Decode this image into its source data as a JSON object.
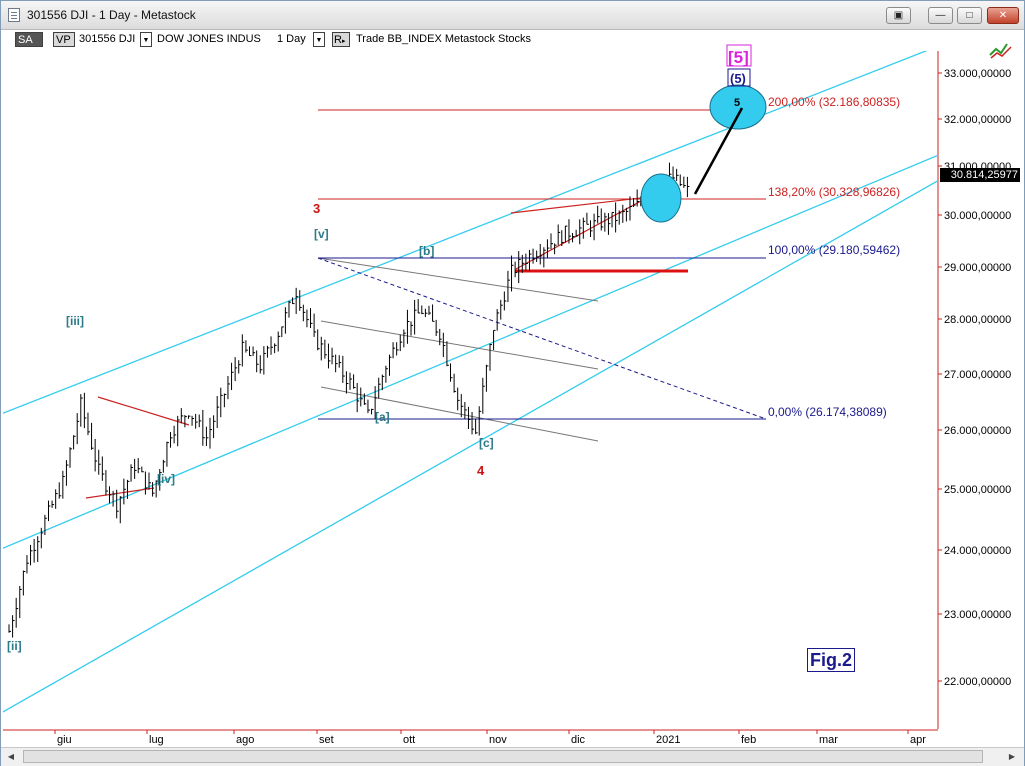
{
  "window": {
    "title": "301556 DJI - 1 Day - Metastock"
  },
  "window_controls": {
    "restore_alt": "▣",
    "minimize": "—",
    "maximize": "□",
    "close": "✕"
  },
  "toolbar": {
    "sa_label": "SA",
    "vp_label": "VP",
    "symbol": "301556 DJI",
    "dropdown_glyph": "▼",
    "security_name": "DOW JONES INDUS",
    "period": "1 Day",
    "r_label": "R",
    "template": "Trade BB_INDEX Metastock Stocks"
  },
  "price_axis": {
    "labels": [
      "33.000,00000",
      "32.000,00000",
      "31.000,00000",
      "30.000,00000",
      "29.000,00000",
      "28.000,00000",
      "27.000,00000",
      "26.000,00000",
      "25.000,00000",
      "24.000,00000",
      "23.000,00000",
      "22.000,00000"
    ],
    "last_price": "30.814,25977",
    "color": "#cc2222"
  },
  "time_axis": {
    "labels": [
      "giu",
      "lug",
      "ago",
      "set",
      "ott",
      "nov",
      "dic",
      "2021",
      "feb",
      "mar",
      "apr"
    ]
  },
  "fibonacci": {
    "levels": [
      {
        "label": "200,00% (32.186,80835)",
        "color": "#cc2222"
      },
      {
        "label": "138,20% (30.328,96826)",
        "color": "#cc2222"
      },
      {
        "label": "100,00% (29.180,59462)",
        "color": "#1a1a8c"
      },
      {
        "label": "0,00% (26.174,38089)",
        "color": "#1a1a8c"
      }
    ]
  },
  "wave_labels": {
    "ii": "[ii]",
    "iii": "[iii]",
    "iv": "[iv]",
    "v": "[v]",
    "a": "[a]",
    "b": "[b]",
    "c": "[c]",
    "three": "3",
    "four": "4",
    "five": "5",
    "five_minor": "(5)",
    "five_major": "[5]"
  },
  "figure_label": "Fig.2",
  "colors": {
    "channel": "#33ccee",
    "fib_red": "#cc2222",
    "fib_blue": "#1a1a8c",
    "wave_teal": "#2a7a88",
    "bars": "#000000",
    "ellipse": "#33ccee",
    "magenta": "#dd22dd"
  },
  "chart_data": {
    "type": "bar",
    "series_style": "ohlc",
    "ylim": [
      21600,
      33700
    ],
    "x_ticks": [
      "giu",
      "lug",
      "ago",
      "set",
      "ott",
      "nov",
      "dic",
      "2021",
      "feb",
      "mar",
      "apr"
    ],
    "weekly_close": [
      [
        1,
        22900
      ],
      [
        2,
        24200
      ],
      [
        3,
        24900
      ],
      [
        4,
        25600
      ],
      [
        5,
        27000
      ],
      [
        6,
        25800
      ],
      [
        7,
        25200
      ],
      [
        8,
        25900
      ],
      [
        9,
        25400
      ],
      [
        10,
        26500
      ],
      [
        11,
        26900
      ],
      [
        12,
        26400
      ],
      [
        13,
        27200
      ],
      [
        14,
        28000
      ],
      [
        15,
        27700
      ],
      [
        16,
        28300
      ],
      [
        17,
        29050
      ],
      [
        18,
        28200
      ],
      [
        19,
        27800
      ],
      [
        20,
        27400
      ],
      [
        21,
        26800
      ],
      [
        22,
        27700
      ],
      [
        23,
        28400
      ],
      [
        24,
        28700
      ],
      [
        25,
        28300
      ],
      [
        26,
        27100
      ],
      [
        27,
        26500
      ],
      [
        28,
        28400
      ],
      [
        29,
        29400
      ],
      [
        30,
        29700
      ],
      [
        31,
        29900
      ],
      [
        32,
        30100
      ],
      [
        33,
        30200
      ],
      [
        34,
        30300
      ],
      [
        35,
        30400
      ],
      [
        36,
        30600
      ],
      [
        37,
        31000
      ],
      [
        38,
        31100
      ],
      [
        39,
        30814
      ]
    ]
  }
}
